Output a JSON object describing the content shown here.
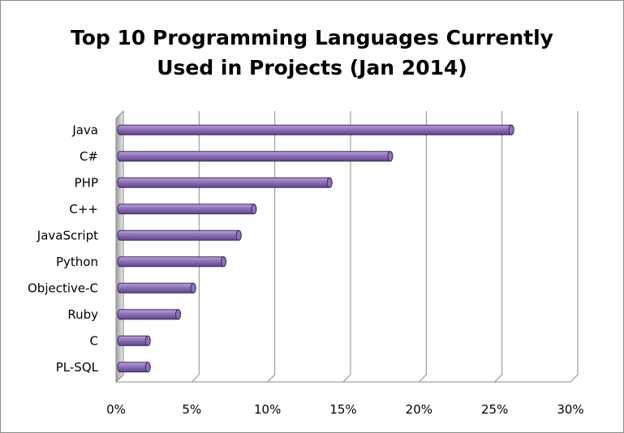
{
  "chart_data": {
    "type": "bar",
    "orientation": "horizontal",
    "style": "3d-cylinder",
    "title_lines": [
      "Top 10 Programming Languages Currently",
      "Used in Projects (Jan 2014)"
    ],
    "categories": [
      "Java",
      "C#",
      "PHP",
      "C++",
      "JavaScript",
      "Python",
      "Objective-C",
      "Ruby",
      "C",
      "PL-SQL"
    ],
    "values": [
      26.1,
      18.1,
      14.1,
      9.1,
      8.1,
      7.1,
      5.1,
      4.1,
      2.1,
      2.1
    ],
    "value_unit": "%",
    "xlim": [
      0,
      30
    ],
    "xticks": [
      "0%",
      "5%",
      "10%",
      "15%",
      "20%",
      "25%",
      "30%"
    ],
    "grid": true,
    "legend": "none",
    "colors": {
      "bar": "#8e72b8",
      "bar_dark": "#5e4488",
      "bar_light": "#b8a2d8",
      "grid": "#8c8c8c"
    }
  }
}
